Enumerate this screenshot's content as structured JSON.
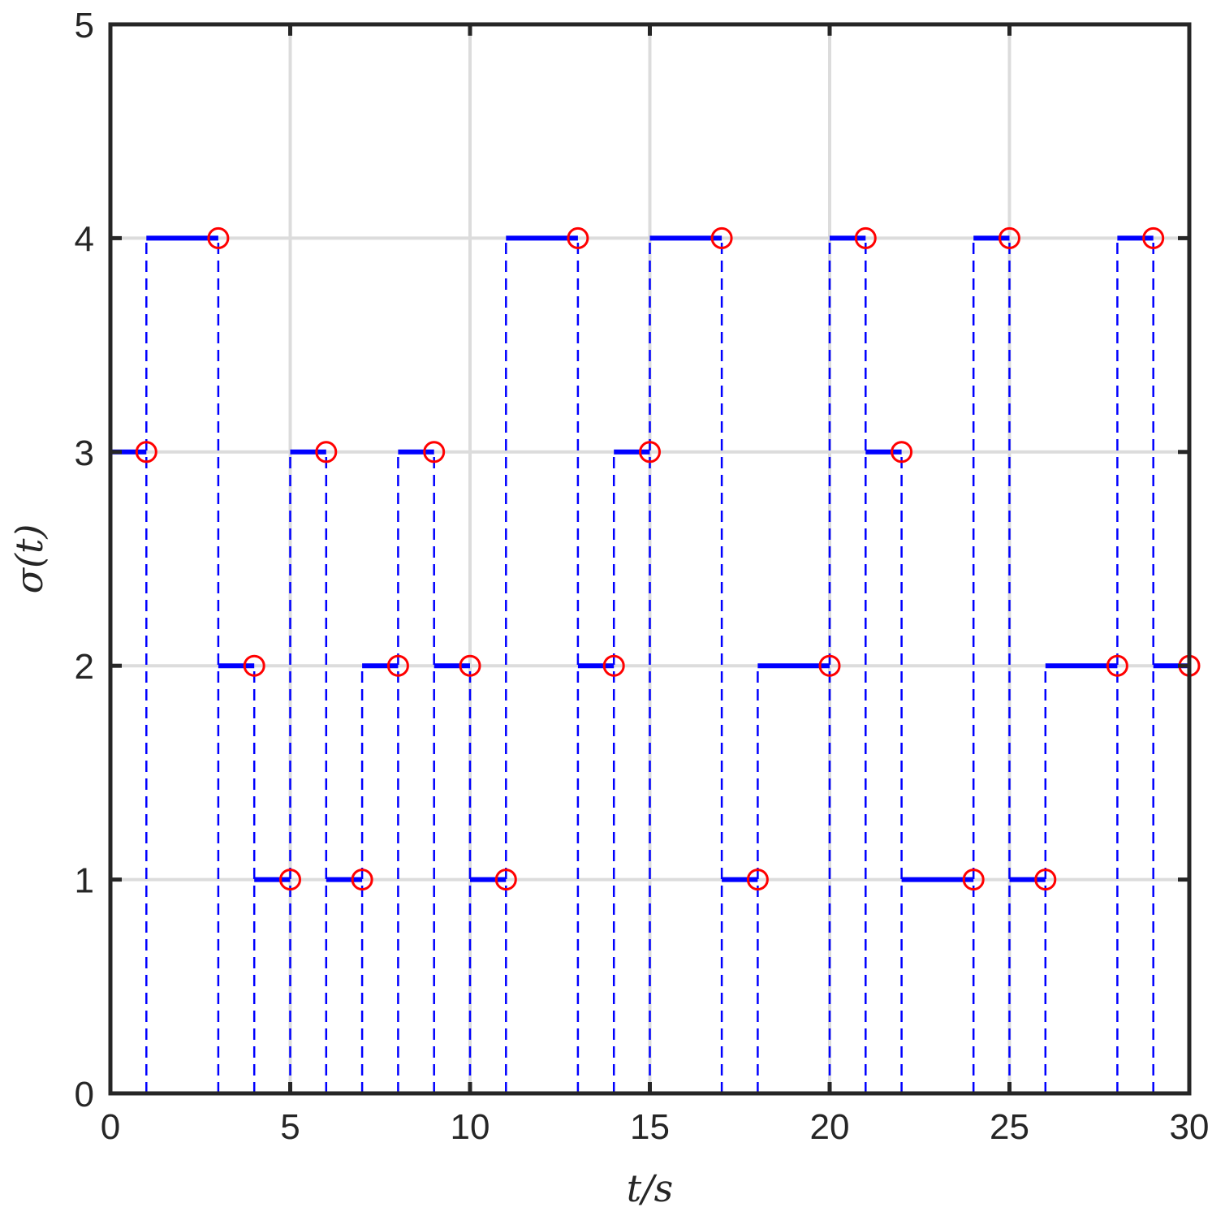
{
  "chart_data": {
    "type": "line",
    "title": "",
    "xlabel": "t/s",
    "ylabel": "σ(t)",
    "xlim": [
      0,
      30
    ],
    "ylim": [
      0,
      5
    ],
    "xticks": [
      0,
      5,
      10,
      15,
      20,
      25,
      30
    ],
    "yticks": [
      0,
      1,
      2,
      3,
      4,
      5
    ],
    "grid": true,
    "series": [
      {
        "style": "step",
        "color": "#0000ff",
        "segments": [
          {
            "t_start": 0,
            "t_end": 1,
            "sigma": 3
          },
          {
            "t_start": 1,
            "t_end": 3,
            "sigma": 4
          },
          {
            "t_start": 3,
            "t_end": 4,
            "sigma": 2
          },
          {
            "t_start": 4,
            "t_end": 5,
            "sigma": 1
          },
          {
            "t_start": 5,
            "t_end": 6,
            "sigma": 3
          },
          {
            "t_start": 6,
            "t_end": 7,
            "sigma": 1
          },
          {
            "t_start": 7,
            "t_end": 8,
            "sigma": 2
          },
          {
            "t_start": 8,
            "t_end": 9,
            "sigma": 3
          },
          {
            "t_start": 9,
            "t_end": 10,
            "sigma": 2
          },
          {
            "t_start": 10,
            "t_end": 11,
            "sigma": 1
          },
          {
            "t_start": 11,
            "t_end": 13,
            "sigma": 4
          },
          {
            "t_start": 13,
            "t_end": 14,
            "sigma": 2
          },
          {
            "t_start": 14,
            "t_end": 15,
            "sigma": 3
          },
          {
            "t_start": 15,
            "t_end": 17,
            "sigma": 4
          },
          {
            "t_start": 17,
            "t_end": 18,
            "sigma": 1
          },
          {
            "t_start": 18,
            "t_end": 20,
            "sigma": 2
          },
          {
            "t_start": 20,
            "t_end": 21,
            "sigma": 4
          },
          {
            "t_start": 21,
            "t_end": 22,
            "sigma": 3
          },
          {
            "t_start": 22,
            "t_end": 24,
            "sigma": 1
          },
          {
            "t_start": 24,
            "t_end": 25,
            "sigma": 4
          },
          {
            "t_start": 25,
            "t_end": 26,
            "sigma": 1
          },
          {
            "t_start": 26,
            "t_end": 28,
            "sigma": 2
          },
          {
            "t_start": 28,
            "t_end": 29,
            "sigma": 4
          },
          {
            "t_start": 29,
            "t_end": 30,
            "sigma": 2
          }
        ]
      }
    ],
    "switch_lines": {
      "color": "#0000ff",
      "style": "dashed"
    },
    "markers": {
      "color": "#ff0000",
      "shape": "open-circle"
    },
    "colors": {
      "grid": "#dcdcdc",
      "axes": "#262626"
    }
  }
}
